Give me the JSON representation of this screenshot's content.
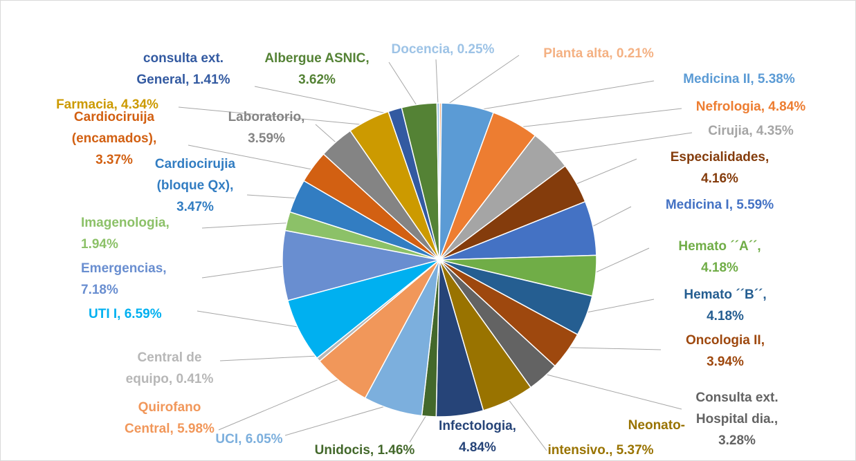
{
  "chart_data": {
    "type": "pie",
    "categories": [
      "Planta alta",
      "Medicina II",
      "Nefrologia",
      "Cirujia",
      "Especialidades",
      "Medicina I",
      "Hemato ´´A´´",
      "Hemato ´´B´´",
      "Oncologia II",
      "Consulta ext. Hospital dia.",
      "Neonato-intensivo.",
      "Infectologia",
      "Unidocis",
      "UCI",
      "Quirofano Central",
      "Central de equipo",
      "UTI I",
      "Emergencias",
      "Imagenologia",
      "Cardiocirujia (bloque Qx)",
      "Cardiociruija (encamados)",
      "Laboratorio",
      "Farmacia",
      "consulta ext. General",
      "Albergue ASNIC",
      "Docencia"
    ],
    "values": [
      0.21,
      5.38,
      4.84,
      4.35,
      4.16,
      5.59,
      4.18,
      4.18,
      3.94,
      3.28,
      5.37,
      4.84,
      1.46,
      6.05,
      5.98,
      0.41,
      6.59,
      7.18,
      1.94,
      3.47,
      3.37,
      3.59,
      4.34,
      1.41,
      3.62,
      0.25
    ],
    "value_labels": [
      "Planta alta, 0.21%",
      "Medicina II, 5.38%",
      "Nefrologia, 4.84%",
      "Cirujia, 4.35%",
      "Especialidades, 4.16%",
      "Medicina I, 5.59%",
      "Hemato ´´A´´, 4.18%",
      "Hemato ´´B´´, 4.18%",
      "Oncologia II, 3.94%",
      "Consulta ext. Hospital dia., 3.28%",
      "Neonato-intensivo., 5.37%",
      "Infectologia, 4.84%",
      "Unidocis, 1.46%",
      "UCI, 6.05%",
      "Quirofano Central, 5.98%",
      "Central de equipo, 0.41%",
      "UTI I, 6.59%",
      "Emergencias, 7.18%",
      "Imagenologia, 1.94%",
      "Cardiocirujia (bloque Qx), 3.47%",
      "Cardiociruija (encamados), 3.37%",
      "Laboratorio, 3.59%",
      "Farmacia, 4.34%",
      "consulta ext. General, 1.41%",
      "Albergue ASNIC, 3.62%",
      "Docencia, 0.25%"
    ],
    "colors": [
      "#f4b183",
      "#5b9bd5",
      "#ed7d31",
      "#a5a5a5",
      "#843c0c",
      "#4472c4",
      "#70ad47",
      "#255e91",
      "#9e480e",
      "#636363",
      "#997300",
      "#264478",
      "#43682b",
      "#7cafdd",
      "#f1975a",
      "#b7b7b7",
      "#00b0f0",
      "#698ed0",
      "#8cc168",
      "#327dc2",
      "#d26012",
      "#848484",
      "#cc9a00",
      "#335aa1",
      "#548235",
      "#9dc3e6"
    ]
  }
}
